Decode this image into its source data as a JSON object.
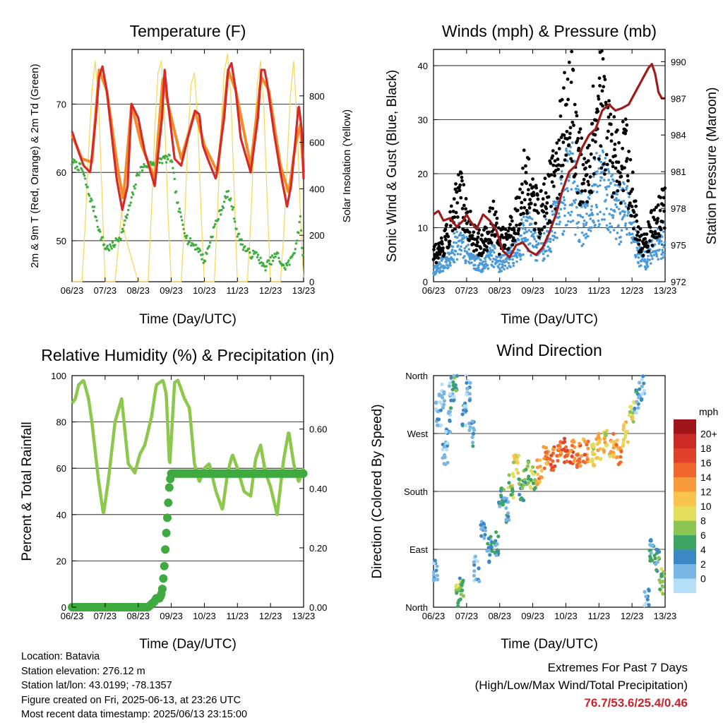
{
  "panels": {
    "temperature": {
      "title": "Temperature (F)",
      "ylabel": "2m & 9m T (Red, Orange) & 2m Td (Green)",
      "y2label": "Solar Insolation (Yellow)",
      "xlabel": "Time (Day/UTC)"
    },
    "winds": {
      "title": "Winds (mph) & Pressure (mb)",
      "ylabel": "Sonic Wind & Gust (Blue, Black)",
      "y2label": "Station Pressure (Maroon)",
      "xlabel": "Time (Day/UTC)"
    },
    "humidity": {
      "title": "Relative Humidity (%) & Precipitation (in)",
      "ylabel": "Percent & Total Rainfall",
      "xlabel": "Time (Day/UTC)"
    },
    "direction": {
      "title": "Wind Direction",
      "ylabel": "Direction (Colored By Speed)",
      "xlabel": "Time (Day/UTC)",
      "legend_title": "mph",
      "legend_labels": [
        "20+",
        "18",
        "16",
        "14",
        "12",
        "10",
        "8",
        "6",
        "4",
        "2",
        "0"
      ],
      "legend_colors": [
        "#a0151b",
        "#cc2a25",
        "#e0412b",
        "#f0672d",
        "#f89b3c",
        "#f7c44e",
        "#e3de5c",
        "#8cc554",
        "#3ea463",
        "#3b88c3",
        "#79b6e5",
        "#b4dff7"
      ]
    }
  },
  "info": {
    "location": "Location: Batavia",
    "elevation": "Station elevation: 276.12 m",
    "latlon": "Station lat/lon: 43.0199; -78.1357",
    "created": "Figure created on Fri, 2025-06-13, at 23:26 UTC",
    "recent": "Most recent data timestamp: 2025/06/13 23:15:00"
  },
  "extremes": {
    "line1": "Extremes For Past 7 Days",
    "line2": "(High/Low/Max Wind/Total Precipitation)",
    "values": "76.7/53.6/25.4/0.46"
  },
  "colors": {
    "temp2m": "#d42a2a",
    "temp9m": "#f28c28",
    "dewpoint": "#3fae3f",
    "solar": "#f5d654",
    "wind": "#4d9ad8",
    "gust": "#000000",
    "pressure": "#a01a1a",
    "rh": "#8cc84b",
    "precip": "#3faa3f"
  },
  "chart_data": [
    {
      "type": "line",
      "title": "Temperature (F)",
      "x_ticks": [
        "06/23",
        "07/23",
        "08/23",
        "09/23",
        "10/23",
        "11/23",
        "12/23",
        "13/23"
      ],
      "xlim": [
        0,
        7
      ],
      "ylim": [
        44,
        78
      ],
      "y_ticks": [
        50,
        60,
        70
      ],
      "y2lim": [
        0,
        1000
      ],
      "y2_ticks": [
        0,
        200,
        400,
        600,
        800
      ],
      "series": [
        {
          "name": "2m T (Red)",
          "axis": "left",
          "x": [
            0,
            0.2,
            0.35,
            0.55,
            0.72,
            0.82,
            0.92,
            1.05,
            1.35,
            1.52,
            1.68,
            1.8,
            2.0,
            2.2,
            2.5,
            2.72,
            2.8,
            2.88,
            3.1,
            3.3,
            3.5,
            3.72,
            3.85,
            3.95,
            4.1,
            4.35,
            4.6,
            4.72,
            4.82,
            4.95,
            5.1,
            5.4,
            5.62,
            5.72,
            5.82,
            5.9,
            6.1,
            6.3,
            6.5,
            6.62,
            6.72,
            6.85,
            6.95,
            7.0
          ],
          "y": [
            66,
            63,
            61,
            60,
            68,
            74,
            75.5,
            72,
            59,
            54.5,
            58,
            70,
            68,
            63,
            58,
            68,
            75,
            71,
            62,
            61,
            65,
            69,
            68.5,
            64,
            62,
            59,
            68,
            75,
            76,
            72,
            65,
            60,
            68,
            75,
            75,
            73,
            66,
            60,
            55,
            58,
            63,
            70,
            66,
            59
          ]
        },
        {
          "name": "9m T (Orange)",
          "axis": "left",
          "x": [
            0,
            0.3,
            0.6,
            0.82,
            1.05,
            1.4,
            1.55,
            1.8,
            2.1,
            2.5,
            2.75,
            2.9,
            3.3,
            3.72,
            4.0,
            4.4,
            4.72,
            4.95,
            5.4,
            5.72,
            5.95,
            6.3,
            6.55,
            6.75,
            6.9,
            7.0
          ],
          "y": [
            65.5,
            62,
            61.5,
            75,
            72,
            60,
            56,
            70,
            64,
            59,
            74,
            70,
            62,
            69,
            64,
            60,
            75,
            72,
            61,
            74,
            72,
            61,
            57,
            64,
            67,
            60
          ]
        },
        {
          "name": "2m Td (Green)",
          "axis": "left",
          "x": [
            0,
            0.3,
            0.5,
            0.7,
            0.85,
            1.0,
            1.2,
            1.5,
            1.8,
            2.0,
            2.2,
            2.5,
            2.8,
            3.0,
            3.2,
            3.5,
            3.8,
            4.0,
            4.3,
            4.55,
            4.7,
            4.85,
            5.0,
            5.2,
            5.4,
            5.6,
            5.8,
            6.0,
            6.2,
            6.4,
            6.6,
            6.75,
            6.9,
            7.0
          ],
          "y": [
            61.5,
            60.5,
            57,
            54,
            51,
            49,
            49,
            51,
            56,
            60,
            61,
            61.5,
            62,
            62,
            55,
            50,
            49,
            47,
            52,
            55,
            57,
            55,
            51,
            49,
            48,
            48,
            46,
            47,
            48,
            46,
            47,
            49,
            53,
            46
          ]
        },
        {
          "name": "Solar Insolation (Yellow)",
          "axis": "right",
          "x": [
            0,
            0.3,
            0.4,
            0.5,
            0.6,
            0.7,
            0.8,
            0.9,
            1.0,
            1.3,
            1.4,
            1.5,
            1.6,
            1.7,
            1.8,
            1.9,
            2.0,
            2.3,
            2.4,
            2.5,
            2.6,
            2.7,
            2.8,
            2.9,
            3.0,
            3.3,
            3.4,
            3.5,
            3.6,
            3.7,
            3.8,
            3.9,
            4.0,
            4.3,
            4.4,
            4.5,
            4.6,
            4.7,
            4.8,
            4.9,
            5.0,
            5.3,
            5.4,
            5.5,
            5.6,
            5.7,
            5.8,
            5.9,
            6.0,
            6.3,
            6.4,
            6.5,
            6.6,
            6.7,
            6.8,
            6.9,
            7.0
          ],
          "y": [
            0,
            0,
            250,
            550,
            820,
            950,
            780,
            400,
            0,
            0,
            150,
            300,
            200,
            150,
            100,
            50,
            0,
            0,
            300,
            650,
            900,
            950,
            700,
            300,
            0,
            0,
            250,
            600,
            850,
            900,
            700,
            300,
            0,
            0,
            300,
            650,
            900,
            980,
            800,
            400,
            0,
            0,
            250,
            600,
            850,
            950,
            750,
            350,
            0,
            0,
            200,
            500,
            800,
            950,
            700,
            300,
            0
          ]
        }
      ]
    },
    {
      "type": "line",
      "title": "Winds (mph) & Pressure (mb)",
      "x_ticks": [
        "06/23",
        "07/23",
        "08/23",
        "09/23",
        "10/23",
        "11/23",
        "12/23",
        "13/23"
      ],
      "xlim": [
        0,
        7
      ],
      "ylim": [
        0,
        43
      ],
      "y_ticks": [
        0,
        10,
        20,
        30,
        40
      ],
      "y2lim": [
        972,
        991
      ],
      "y2_ticks": [
        972,
        975,
        978,
        981,
        984,
        987,
        990
      ],
      "series": [
        {
          "name": "Sonic Wind (Blue)",
          "axis": "left",
          "x": [
            0,
            0.2,
            0.4,
            0.6,
            0.8,
            1.0,
            1.2,
            1.4,
            1.6,
            1.8,
            2.0,
            2.2,
            2.4,
            2.6,
            2.8,
            3.0,
            3.2,
            3.4,
            3.6,
            3.8,
            4.0,
            4.2,
            4.4,
            4.6,
            4.8,
            5.0,
            5.2,
            5.4,
            5.6,
            5.8,
            6.0,
            6.2,
            6.4,
            6.6,
            6.8,
            7.0
          ],
          "y": [
            2,
            3,
            4,
            6,
            8,
            6,
            4,
            3,
            4,
            5,
            3,
            4,
            5,
            7,
            10,
            8,
            6,
            8,
            10,
            13,
            17,
            18,
            12,
            10,
            14,
            18,
            17,
            14,
            12,
            14,
            10,
            5,
            4,
            6,
            7,
            8
          ]
        },
        {
          "name": "Gust (Black)",
          "axis": "left",
          "x": [
            0,
            0.2,
            0.4,
            0.6,
            0.8,
            1.0,
            1.2,
            1.4,
            1.6,
            1.8,
            2.0,
            2.2,
            2.4,
            2.6,
            2.8,
            3.0,
            3.2,
            3.4,
            3.6,
            3.8,
            4.0,
            4.2,
            4.4,
            4.6,
            4.8,
            5.0,
            5.2,
            5.4,
            5.6,
            5.8,
            6.0,
            6.2,
            6.4,
            6.6,
            6.8,
            7.0
          ],
          "y": [
            5,
            6,
            8,
            12,
            16,
            12,
            8,
            7,
            8,
            12,
            7,
            8,
            10,
            14,
            20,
            15,
            12,
            15,
            18,
            24,
            30,
            32,
            22,
            18,
            26,
            33,
            30,
            24,
            20,
            24,
            16,
            8,
            7,
            10,
            12,
            14
          ]
        },
        {
          "name": "Station Pressure (Maroon)",
          "axis": "right",
          "x": [
            0,
            0.15,
            0.3,
            0.5,
            0.7,
            0.9,
            1.0,
            1.1,
            1.3,
            1.5,
            1.7,
            1.9,
            2.1,
            2.3,
            2.5,
            2.7,
            2.9,
            3.1,
            3.3,
            3.5,
            3.7,
            3.9,
            4.1,
            4.3,
            4.5,
            4.7,
            4.9,
            5.1,
            5.3,
            5.5,
            5.7,
            5.9,
            6.1,
            6.3,
            6.5,
            6.6,
            6.7,
            6.8,
            6.9,
            7.0
          ],
          "y": [
            977.5,
            977.8,
            977,
            977.2,
            976.5,
            977,
            977.5,
            977,
            976.3,
            977.5,
            977,
            976.2,
            974.5,
            974,
            975,
            975.2,
            974.5,
            974.2,
            974.8,
            976,
            977.5,
            979.5,
            981,
            981.5,
            983,
            984,
            984.5,
            986,
            986.5,
            986,
            986.2,
            986.5,
            987.5,
            988.5,
            989.5,
            989.8,
            989,
            987.5,
            987,
            987
          ]
        }
      ]
    },
    {
      "type": "line",
      "title": "Relative Humidity (%) & Precipitation (in)",
      "x_ticks": [
        "06/23",
        "07/23",
        "08/23",
        "09/23",
        "10/23",
        "11/23",
        "12/23",
        "13/23"
      ],
      "xlim": [
        0,
        7
      ],
      "ylim": [
        0,
        100
      ],
      "y_ticks": [
        0,
        20,
        40,
        60,
        80,
        100
      ],
      "y2lim": [
        0,
        0.78
      ],
      "y2_ticks": [
        "0.00",
        "0.20",
        "0.40",
        "0.60"
      ],
      "series": [
        {
          "name": "Relative Humidity",
          "axis": "left",
          "x": [
            0,
            0.1,
            0.2,
            0.35,
            0.5,
            0.6,
            0.8,
            0.95,
            1.1,
            1.3,
            1.5,
            1.7,
            1.9,
            2.05,
            2.2,
            2.4,
            2.55,
            2.75,
            2.85,
            2.95,
            3.1,
            3.2,
            3.4,
            3.55,
            3.7,
            3.85,
            4.0,
            4.15,
            4.35,
            4.55,
            4.7,
            4.85,
            5.0,
            5.2,
            5.4,
            5.55,
            5.7,
            5.85,
            6.0,
            6.2,
            6.4,
            6.55,
            6.7,
            6.85,
            7.0
          ],
          "y": [
            88,
            90,
            96,
            98,
            90,
            80,
            55,
            40,
            55,
            80,
            90,
            62,
            58,
            66,
            70,
            82,
            96,
            98,
            92,
            60,
            97,
            98,
            90,
            86,
            62,
            54,
            60,
            62,
            50,
            42,
            58,
            66,
            60,
            50,
            48,
            64,
            70,
            58,
            52,
            40,
            64,
            76,
            62,
            54,
            60
          ]
        },
        {
          "name": "Total Precipitation",
          "axis": "right",
          "x": [
            0,
            1.5,
            2.3,
            2.5,
            2.55,
            2.65,
            2.72,
            2.78,
            2.85,
            2.95,
            3.0,
            4.0,
            5.0,
            6.0,
            7.0
          ],
          "y": [
            0,
            0,
            0,
            0.02,
            0.03,
            0.03,
            0.05,
            0.12,
            0.25,
            0.42,
            0.45,
            0.45,
            0.45,
            0.45,
            0.45
          ]
        }
      ]
    },
    {
      "type": "scatter",
      "title": "Wind Direction",
      "x_ticks": [
        "06/23",
        "07/23",
        "08/23",
        "09/23",
        "10/23",
        "11/23",
        "12/23",
        "13/23"
      ],
      "xlim": [
        0,
        7
      ],
      "y_ticks": [
        "North",
        "East",
        "South",
        "West",
        "North"
      ],
      "ylim": [
        0,
        360
      ],
      "colorbar": {
        "label": "mph",
        "range": [
          0,
          20
        ]
      },
      "series": [
        {
          "name": "Wind Direction",
          "x": [
            0.05,
            0.15,
            0.25,
            0.35,
            0.45,
            0.55,
            0.65,
            0.75,
            0.85,
            0.95,
            1.05,
            1.15,
            1.3,
            1.5,
            1.7,
            1.9,
            2.05,
            2.2,
            2.35,
            2.5,
            2.65,
            2.8,
            3.0,
            3.2,
            3.4,
            3.6,
            3.8,
            4.0,
            4.2,
            4.4,
            4.6,
            4.8,
            5.0,
            5.2,
            5.4,
            5.6,
            5.8,
            6.0,
            6.15,
            6.3,
            6.45,
            6.6,
            6.75,
            6.9
          ],
          "y": [
            60,
            300,
            330,
            240,
            290,
            340,
            355,
            20,
            30,
            300,
            340,
            270,
            60,
            120,
            90,
            100,
            170,
            150,
            190,
            220,
            180,
            210,
            200,
            210,
            230,
            230,
            240,
            245,
            240,
            235,
            245,
            240,
            250,
            260,
            250,
            240,
            270,
            300,
            320,
            340,
            10,
            90,
            70,
            40
          ],
          "speed": [
            3,
            3,
            2,
            3,
            4,
            3,
            7,
            9,
            8,
            4,
            3,
            4,
            3,
            4,
            5,
            5,
            6,
            5,
            10,
            12,
            7,
            8,
            9,
            14,
            16,
            17,
            16,
            18,
            17,
            16,
            16,
            12,
            14,
            12,
            14,
            16,
            12,
            10,
            4,
            3,
            3,
            5,
            6,
            9
          ]
        }
      ]
    }
  ]
}
